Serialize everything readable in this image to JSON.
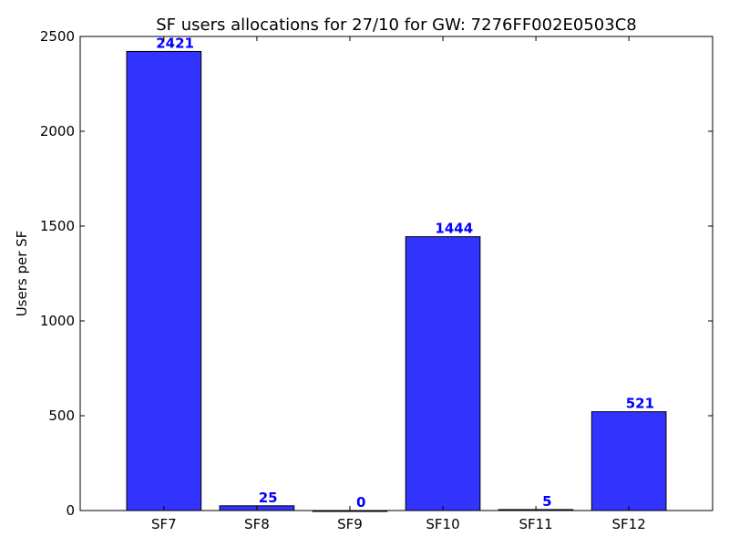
{
  "chart_data": {
    "type": "bar",
    "title": "SF users allocations for 27/10 for GW: 7276FF002E0503C8",
    "xlabel": "",
    "ylabel": "Users per SF",
    "categories": [
      "SF7",
      "SF8",
      "SF9",
      "SF10",
      "SF11",
      "SF12"
    ],
    "values": [
      2421,
      25,
      0,
      1444,
      5,
      521
    ],
    "data_labels": [
      "2421",
      "25",
      "0",
      "1444",
      "5",
      "521"
    ],
    "ylim": [
      0,
      2500
    ],
    "yticks": [
      0,
      500,
      1000,
      1500,
      2000,
      2500
    ],
    "ytick_labels": [
      "0",
      "500",
      "1000",
      "1500",
      "2000",
      "2500"
    ],
    "grid": false,
    "bar_color": "#3333ff",
    "label_color": "#0000ff"
  }
}
